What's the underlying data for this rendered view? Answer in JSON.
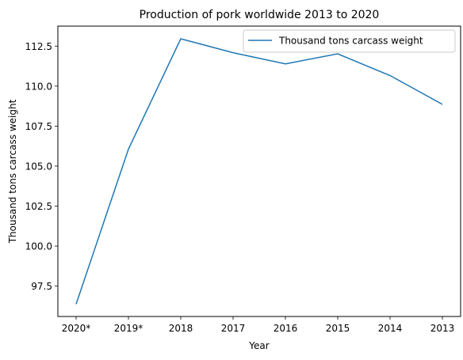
{
  "chart_data": {
    "type": "line",
    "title": "Production of pork worldwide 2013 to 2020",
    "xlabel": "Year",
    "ylabel": "Thousand tons carcass weight",
    "categories": [
      "2020*",
      "2019*",
      "2018",
      "2017",
      "2016",
      "2015",
      "2014",
      "2013"
    ],
    "series": [
      {
        "name": "Thousand tons carcass weight",
        "values": [
          96.37,
          106.06,
          112.96,
          112.09,
          111.39,
          112.02,
          110.66,
          108.86
        ],
        "color": "#1f77b4"
      }
    ],
    "ylim": [
      95.6,
      113.75
    ],
    "yticks": [
      97.5,
      100.0,
      102.5,
      105.0,
      107.5,
      110.0,
      112.5
    ],
    "ytick_labels": [
      "97.5",
      "100.0",
      "102.5",
      "105.0",
      "107.5",
      "110.0",
      "112.5"
    ],
    "grid": false,
    "legend": "upper right"
  }
}
